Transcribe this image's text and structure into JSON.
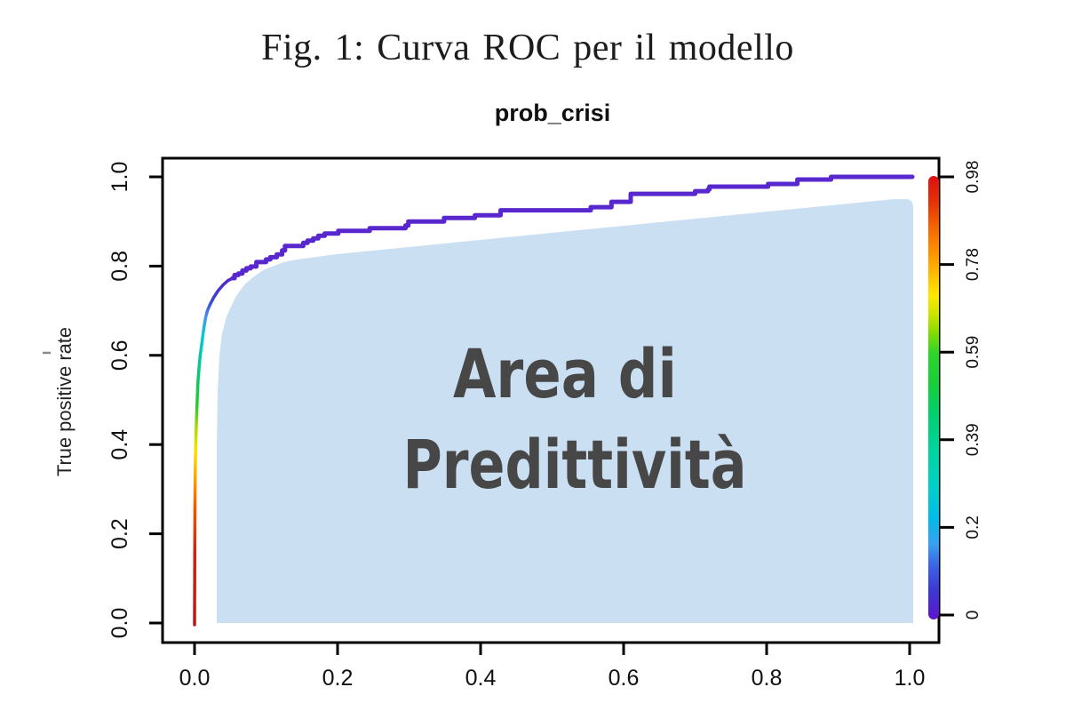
{
  "figure": {
    "title": "Fig. 1: Curva ROC per il modello"
  },
  "chart_data": {
    "type": "line",
    "title": "prob_crisi",
    "xlabel": "",
    "ylabel": "True positive rate",
    "xlim": [
      0,
      1
    ],
    "ylim": [
      0,
      1
    ],
    "x_ticks": [
      "0.0",
      "0.2",
      "0.4",
      "0.6",
      "0.8",
      "1.0"
    ],
    "y_ticks": [
      "0.0",
      "0.2",
      "0.4",
      "0.6",
      "0.8",
      "1.0"
    ],
    "annotation": {
      "line1": "Area di",
      "line2": "Predittività"
    },
    "colorbar": {
      "tick_labels": [
        "0.98",
        "0.78",
        "0.59",
        "0.39",
        "0.2",
        "0"
      ],
      "value_range": [
        0,
        0.98
      ]
    },
    "colors": {
      "curve_purple": "#5827ce",
      "area_fill": "#cbdff3",
      "area_text": "#474747",
      "axis": "#000000",
      "colorbar_stops_top_to_bottom": [
        [
          "#dc1010",
          0.0
        ],
        [
          "#e63208",
          0.06
        ],
        [
          "#f56a00",
          0.12
        ],
        [
          "#ff9800",
          0.18
        ],
        [
          "#ffc400",
          0.23
        ],
        [
          "#ffe800",
          0.27
        ],
        [
          "#d0e400",
          0.31
        ],
        [
          "#8cdc00",
          0.35
        ],
        [
          "#2fd42a",
          0.4
        ],
        [
          "#16d03a",
          0.47
        ],
        [
          "#00d070",
          0.54
        ],
        [
          "#00d4a0",
          0.62
        ],
        [
          "#00d0c8",
          0.7
        ],
        [
          "#00bce8",
          0.77
        ],
        [
          "#38a0f0",
          0.83
        ],
        [
          "#3b63e6",
          0.88
        ],
        [
          "#3c3bd4",
          0.93
        ],
        [
          "#5c14cc",
          1.0
        ]
      ],
      "curve_gradient_bottom_to_top": [
        [
          "#c41414",
          0.0
        ],
        [
          "#d01f10",
          0.21
        ],
        [
          "#f05a00",
          0.34
        ],
        [
          "#ffa000",
          0.42
        ],
        [
          "#ffe000",
          0.5
        ],
        [
          "#b0dc00",
          0.565
        ],
        [
          "#30c830",
          0.63
        ],
        [
          "#10c860",
          0.7
        ],
        [
          "#00c8b0",
          0.78
        ],
        [
          "#00ccd8",
          0.84
        ],
        [
          "#4890f0",
          0.89
        ],
        [
          "#3a50dc",
          0.925
        ],
        [
          "#4634d2",
          0.96
        ],
        [
          "#5827ce",
          1.0
        ]
      ]
    },
    "series": [
      {
        "name": "roc_gradient_segment",
        "values": [
          [
            0,
            0
          ],
          [
            0.0005,
            0.25
          ],
          [
            0.001,
            0.35
          ],
          [
            0.002,
            0.42
          ],
          [
            0.003,
            0.47
          ],
          [
            0.004,
            0.51
          ],
          [
            0.005,
            0.545
          ],
          [
            0.0065,
            0.575
          ],
          [
            0.008,
            0.6
          ],
          [
            0.01,
            0.625
          ],
          [
            0.012,
            0.65
          ],
          [
            0.0137,
            0.668
          ],
          [
            0.0155,
            0.685
          ],
          [
            0.018,
            0.7
          ],
          [
            0.022,
            0.715
          ],
          [
            0.027,
            0.73
          ],
          [
            0.033,
            0.745
          ],
          [
            0.04,
            0.758
          ],
          [
            0.047,
            0.768
          ],
          [
            0.0534,
            0.773
          ]
        ]
      },
      {
        "name": "roc_purple_segment",
        "values": [
          [
            0.0534,
            0.773
          ],
          [
            0.056,
            0.78
          ],
          [
            0.0595,
            0.78
          ],
          [
            0.0615,
            0.7835
          ],
          [
            0.065,
            0.7835
          ],
          [
            0.067,
            0.79
          ],
          [
            0.0705,
            0.79
          ],
          [
            0.0725,
            0.795
          ],
          [
            0.0765,
            0.795
          ],
          [
            0.0785,
            0.799
          ],
          [
            0.0845,
            0.799
          ],
          [
            0.0865,
            0.809
          ],
          [
            0.0975,
            0.809
          ],
          [
            0.1,
            0.815
          ],
          [
            0.104,
            0.815
          ],
          [
            0.106,
            0.82
          ],
          [
            0.113,
            0.82
          ],
          [
            0.115,
            0.826
          ],
          [
            0.1205,
            0.826
          ],
          [
            0.1225,
            0.835
          ],
          [
            0.1245,
            0.835
          ],
          [
            0.1265,
            0.845
          ],
          [
            0.15,
            0.845
          ],
          [
            0.152,
            0.852
          ],
          [
            0.156,
            0.852
          ],
          [
            0.158,
            0.857
          ],
          [
            0.163,
            0.857
          ],
          [
            0.166,
            0.862
          ],
          [
            0.171,
            0.862
          ],
          [
            0.173,
            0.868
          ],
          [
            0.18,
            0.868
          ],
          [
            0.182,
            0.873
          ],
          [
            0.197,
            0.873
          ],
          [
            0.201,
            0.879
          ],
          [
            0.241,
            0.879
          ],
          [
            0.245,
            0.885
          ],
          [
            0.291,
            0.885
          ],
          [
            0.295,
            0.891
          ],
          [
            0.299,
            0.9
          ],
          [
            0.345,
            0.9
          ],
          [
            0.349,
            0.908
          ],
          [
            0.388,
            0.908
          ],
          [
            0.392,
            0.914
          ],
          [
            0.424,
            0.914
          ],
          [
            0.428,
            0.925
          ],
          [
            0.548,
            0.925
          ],
          [
            0.554,
            0.932
          ],
          [
            0.578,
            0.932
          ],
          [
            0.583,
            0.944
          ],
          [
            0.605,
            0.944
          ],
          [
            0.61,
            0.962
          ],
          [
            0.693,
            0.962
          ],
          [
            0.7,
            0.968
          ],
          [
            0.714,
            0.968
          ],
          [
            0.718,
            0.972
          ],
          [
            0.72,
            0.978
          ],
          [
            0.796,
            0.978
          ],
          [
            0.802,
            0.984
          ],
          [
            0.838,
            0.984
          ],
          [
            0.843,
            0.994
          ],
          [
            0.885,
            0.994
          ],
          [
            0.89,
            1.0
          ],
          [
            1.0,
            1.0
          ]
        ]
      },
      {
        "name": "shaded_area_boundary",
        "values": [
          [
            0.031,
            0
          ],
          [
            0.031,
            0.4
          ],
          [
            0.0323,
            0.52
          ],
          [
            0.0348,
            0.6
          ],
          [
            0.0385,
            0.649
          ],
          [
            0.045,
            0.688
          ],
          [
            0.051,
            0.709
          ],
          [
            0.058,
            0.732
          ],
          [
            0.07,
            0.759
          ],
          [
            0.082,
            0.775
          ],
          [
            0.094,
            0.789
          ],
          [
            0.11,
            0.8
          ],
          [
            0.125,
            0.809
          ],
          [
            0.142,
            0.8145
          ],
          [
            0.163,
            0.819
          ],
          [
            0.2,
            0.827
          ],
          [
            0.977,
            0.95
          ],
          [
            0.998,
            0.95
          ],
          [
            1.003,
            0.945
          ],
          [
            1.005,
            0.934
          ],
          [
            1.005,
            0
          ]
        ]
      }
    ]
  }
}
